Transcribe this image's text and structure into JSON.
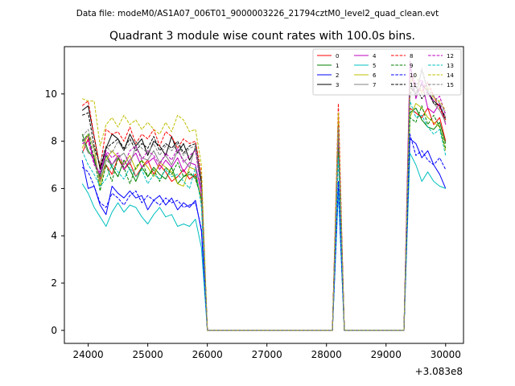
{
  "header": "Data file: modeM0/AS1A07_006T01_9000003226_21794cztM0_level2_quad_clean.evt",
  "chart_data": {
    "type": "line",
    "title": "Quadrant 3 module wise count rates with 100.0s bins.",
    "xlabel": "",
    "ylabel": "",
    "x_offset_label": "+3.083e8",
    "xlim": [
      23600,
      30300
    ],
    "ylim": [
      -0.55,
      12.0
    ],
    "xticks": [
      24000,
      25000,
      26000,
      27000,
      28000,
      29000,
      30000
    ],
    "xtick_labels": [
      "24000",
      "25000",
      "26000",
      "27000",
      "28000",
      "29000",
      "30000"
    ],
    "yticks": [
      0,
      2,
      4,
      6,
      8,
      10
    ],
    "ytick_labels": [
      "0",
      "2",
      "4",
      "6",
      "8",
      "10"
    ],
    "grid": false,
    "legend_position": "top-right",
    "x": [
      23900,
      24000,
      24100,
      24200,
      24300,
      24400,
      24500,
      24600,
      24700,
      24800,
      24900,
      25000,
      25100,
      25200,
      25300,
      25400,
      25500,
      25600,
      25700,
      25800,
      25900,
      26000,
      26100,
      26200,
      26300,
      26400,
      26500,
      26600,
      26700,
      26800,
      26900,
      27000,
      27100,
      27200,
      27300,
      27400,
      27500,
      27600,
      27700,
      27800,
      27900,
      28000,
      28100,
      28200,
      28300,
      28400,
      28500,
      28600,
      28700,
      28800,
      28900,
      29000,
      29100,
      29200,
      29300,
      29400,
      29500,
      29600,
      29700,
      29800,
      29900,
      30000
    ],
    "series": [
      {
        "name": "0",
        "color": "#ff0000",
        "dash": "solid",
        "values": [
          7.5,
          8.1,
          7.2,
          6.4,
          7.0,
          6.6,
          7.3,
          6.8,
          7.1,
          6.5,
          6.9,
          7.2,
          6.6,
          7.0,
          6.7,
          6.3,
          6.5,
          6.8,
          6.4,
          6.6,
          5.6,
          0,
          0,
          0,
          0,
          0,
          0,
          0,
          0,
          0,
          0,
          0,
          0,
          0,
          0,
          0,
          0,
          0,
          0,
          0,
          0,
          0,
          0,
          8.9,
          0,
          0,
          0,
          0,
          0,
          0,
          0,
          0,
          0,
          0,
          0,
          9.4,
          9.2,
          9.0,
          9.4,
          8.7,
          9.0,
          8.0
        ]
      },
      {
        "name": "1",
        "color": "#008000",
        "dash": "solid",
        "values": [
          8.3,
          7.6,
          7.2,
          6.5,
          7.4,
          6.9,
          6.5,
          7.2,
          6.8,
          6.3,
          6.9,
          6.5,
          6.9,
          6.6,
          6.4,
          6.9,
          6.2,
          6.5,
          6.6,
          6.5,
          5.5,
          0,
          0,
          0,
          0,
          0,
          0,
          0,
          0,
          0,
          0,
          0,
          0,
          0,
          0,
          0,
          0,
          0,
          0,
          0,
          0,
          0,
          0,
          8.1,
          0,
          0,
          0,
          0,
          0,
          0,
          0,
          0,
          0,
          0,
          0,
          9.2,
          9.4,
          8.9,
          8.6,
          8.5,
          8.8,
          7.9
        ]
      },
      {
        "name": "2",
        "color": "#0000ff",
        "dash": "solid",
        "values": [
          7.2,
          6.0,
          6.1,
          5.3,
          4.9,
          6.1,
          5.8,
          5.6,
          5.9,
          5.6,
          5.7,
          5.1,
          5.5,
          5.7,
          5.3,
          5.6,
          5.1,
          5.4,
          5.2,
          5.5,
          4.2,
          0,
          0,
          0,
          0,
          0,
          0,
          0,
          0,
          0,
          0,
          0,
          0,
          0,
          0,
          0,
          0,
          0,
          0,
          0,
          0,
          0,
          0,
          6.0,
          0,
          0,
          0,
          0,
          0,
          0,
          0,
          0,
          0,
          0,
          0,
          8.1,
          7.9,
          7.3,
          7.6,
          7.0,
          6.6,
          6.0
        ]
      },
      {
        "name": "3",
        "color": "#000000",
        "dash": "solid",
        "values": [
          9.3,
          9.5,
          8.2,
          6.8,
          7.7,
          8.3,
          8.1,
          7.6,
          8.3,
          7.8,
          8.1,
          7.4,
          8.0,
          7.8,
          7.4,
          8.2,
          7.5,
          7.9,
          7.2,
          7.7,
          6.3,
          0,
          0,
          0,
          0,
          0,
          0,
          0,
          0,
          0,
          0,
          0,
          0,
          0,
          0,
          0,
          0,
          0,
          0,
          0,
          0,
          0,
          0,
          8.6,
          0,
          0,
          0,
          0,
          0,
          0,
          0,
          0,
          0,
          0,
          0,
          10.3,
          10.0,
          10.4,
          10.1,
          9.7,
          9.5,
          8.9
        ]
      },
      {
        "name": "4",
        "color": "#bf00bf",
        "dash": "solid",
        "values": [
          8.0,
          8.2,
          7.1,
          6.6,
          7.5,
          7.0,
          7.4,
          6.8,
          7.2,
          7.5,
          6.9,
          7.1,
          7.3,
          6.8,
          7.2,
          6.9,
          7.3,
          6.7,
          7.1,
          7.0,
          5.8,
          0,
          0,
          0,
          0,
          0,
          0,
          0,
          0,
          0,
          0,
          0,
          0,
          0,
          0,
          0,
          0,
          0,
          0,
          0,
          0,
          0,
          0,
          8.3,
          0,
          0,
          0,
          0,
          0,
          0,
          0,
          0,
          0,
          0,
          0,
          11.4,
          9.8,
          10.5,
          9.4,
          9.2,
          9.6,
          8.7
        ]
      },
      {
        "name": "5",
        "color": "#00bfbf",
        "dash": "solid",
        "values": [
          6.2,
          5.8,
          5.2,
          4.8,
          4.4,
          5.0,
          5.4,
          5.0,
          5.3,
          5.2,
          4.8,
          4.5,
          4.9,
          5.2,
          4.8,
          4.9,
          4.4,
          4.5,
          4.4,
          4.7,
          3.5,
          0,
          0,
          0,
          0,
          0,
          0,
          0,
          0,
          0,
          0,
          0,
          0,
          0,
          0,
          0,
          0,
          0,
          0,
          0,
          0,
          0,
          0,
          5.9,
          0,
          0,
          0,
          0,
          0,
          0,
          0,
          0,
          0,
          0,
          0,
          7.5,
          7.0,
          6.3,
          6.7,
          6.3,
          6.1,
          6.0
        ]
      },
      {
        "name": "6",
        "color": "#bfbf00",
        "dash": "solid",
        "values": [
          7.7,
          8.3,
          7.7,
          6.1,
          7.2,
          7.6,
          7.3,
          7.0,
          7.4,
          6.8,
          7.2,
          6.9,
          6.5,
          7.1,
          6.9,
          6.7,
          6.2,
          6.1,
          6.9,
          6.8,
          5.4,
          0,
          0,
          0,
          0,
          0,
          0,
          0,
          0,
          0,
          0,
          0,
          0,
          0,
          0,
          0,
          0,
          0,
          0,
          0,
          0,
          0,
          0,
          8.0,
          0,
          0,
          0,
          0,
          0,
          0,
          0,
          0,
          0,
          0,
          0,
          9.0,
          9.6,
          9.4,
          9.0,
          8.8,
          8.6,
          7.6
        ]
      },
      {
        "name": "7",
        "color": "#808080",
        "dash": "solid",
        "values": [
          8.1,
          7.5,
          7.4,
          6.3,
          7.2,
          7.0,
          7.3,
          7.5,
          7.0,
          7.8,
          7.3,
          7.2,
          7.6,
          7.1,
          7.4,
          7.0,
          7.6,
          7.2,
          6.9,
          7.8,
          5.9,
          0,
          0,
          0,
          0,
          0,
          0,
          0,
          0,
          0,
          0,
          0,
          0,
          0,
          0,
          0,
          0,
          0,
          0,
          0,
          0,
          0,
          0,
          8.4,
          0,
          0,
          0,
          0,
          0,
          0,
          0,
          0,
          0,
          0,
          0,
          10.5,
          9.9,
          11.0,
          10.1,
          9.6,
          9.3,
          8.8
        ]
      },
      {
        "name": "8",
        "color": "#ff0000",
        "dash": "dashed",
        "values": [
          9.5,
          9.7,
          8.2,
          6.9,
          8.5,
          8.3,
          8.4,
          8.0,
          8.6,
          7.9,
          8.3,
          8.1,
          8.5,
          7.8,
          8.4,
          8.2,
          7.7,
          8.1,
          7.9,
          8.0,
          6.6,
          0,
          0,
          0,
          0,
          0,
          0,
          0,
          0,
          0,
          0,
          0,
          0,
          0,
          0,
          0,
          0,
          0,
          0,
          0,
          0,
          0,
          0,
          9.6,
          0,
          0,
          0,
          0,
          0,
          0,
          0,
          0,
          0,
          0,
          0,
          10.8,
          10.3,
          10.1,
          10.5,
          9.9,
          9.4,
          8.9
        ]
      },
      {
        "name": "9",
        "color": "#008000",
        "dash": "dashed",
        "values": [
          8.0,
          8.3,
          7.3,
          5.9,
          7.0,
          6.3,
          7.3,
          6.9,
          6.2,
          6.9,
          7.2,
          6.5,
          6.8,
          6.3,
          6.9,
          6.6,
          7.1,
          6.5,
          6.7,
          6.4,
          5.6,
          0,
          0,
          0,
          0,
          0,
          0,
          0,
          0,
          0,
          0,
          0,
          0,
          0,
          0,
          0,
          0,
          0,
          0,
          0,
          0,
          0,
          0,
          7.7,
          0,
          0,
          0,
          0,
          0,
          0,
          0,
          0,
          0,
          0,
          0,
          9.0,
          8.8,
          9.5,
          8.7,
          9.1,
          8.6,
          7.7
        ]
      },
      {
        "name": "10",
        "color": "#0000ff",
        "dash": "dashed",
        "values": [
          6.9,
          6.7,
          6.1,
          5.4,
          5.2,
          5.8,
          5.6,
          5.3,
          5.7,
          5.9,
          5.4,
          5.7,
          5.5,
          5.3,
          5.6,
          5.4,
          5.5,
          5.2,
          5.3,
          5.4,
          4.3,
          0,
          0,
          0,
          0,
          0,
          0,
          0,
          0,
          0,
          0,
          0,
          0,
          0,
          0,
          0,
          0,
          0,
          0,
          0,
          0,
          0,
          0,
          6.3,
          0,
          0,
          0,
          0,
          0,
          0,
          0,
          0,
          0,
          0,
          0,
          8.3,
          7.4,
          7.6,
          7.2,
          7.0,
          7.3,
          6.8
        ]
      },
      {
        "name": "11",
        "color": "#000000",
        "dash": "dashed",
        "values": [
          9.1,
          9.2,
          7.8,
          6.9,
          7.7,
          7.9,
          8.1,
          7.7,
          8.1,
          7.6,
          7.9,
          7.7,
          8.2,
          7.6,
          7.9,
          7.7,
          8.0,
          7.5,
          7.8,
          7.9,
          6.3,
          0,
          0,
          0,
          0,
          0,
          0,
          0,
          0,
          0,
          0,
          0,
          0,
          0,
          0,
          0,
          0,
          0,
          0,
          0,
          0,
          0,
          0,
          8.7,
          0,
          0,
          0,
          0,
          0,
          0,
          0,
          0,
          0,
          0,
          0,
          10.0,
          10.3,
          9.8,
          10.1,
          9.6,
          9.5,
          9.0
        ]
      },
      {
        "name": "12",
        "color": "#bf00bf",
        "dash": "dashed",
        "values": [
          7.9,
          8.0,
          7.0,
          6.7,
          7.6,
          7.3,
          7.5,
          7.0,
          7.6,
          7.8,
          7.2,
          7.6,
          7.4,
          7.0,
          7.5,
          7.2,
          7.7,
          7.1,
          7.4,
          7.6,
          5.9,
          0,
          0,
          0,
          0,
          0,
          0,
          0,
          0,
          0,
          0,
          0,
          0,
          0,
          0,
          0,
          0,
          0,
          0,
          0,
          0,
          0,
          0,
          8.4,
          0,
          0,
          0,
          0,
          0,
          0,
          0,
          0,
          0,
          0,
          0,
          11.1,
          10.4,
          10.6,
          10.0,
          9.7,
          9.9,
          9.1
        ]
      },
      {
        "name": "13",
        "color": "#00bfbf",
        "dash": "dashed",
        "values": [
          7.6,
          7.0,
          6.6,
          6.1,
          6.4,
          7.0,
          6.7,
          6.4,
          6.9,
          6.5,
          6.8,
          6.2,
          6.6,
          6.4,
          6.8,
          6.5,
          6.6,
          6.3,
          6.0,
          6.9,
          5.2,
          0,
          0,
          0,
          0,
          0,
          0,
          0,
          0,
          0,
          0,
          0,
          0,
          0,
          0,
          0,
          0,
          0,
          0,
          0,
          0,
          0,
          0,
          7.3,
          0,
          0,
          0,
          0,
          0,
          0,
          0,
          0,
          0,
          0,
          0,
          9.7,
          9.0,
          9.1,
          8.6,
          8.3,
          8.5,
          7.4
        ]
      },
      {
        "name": "14",
        "color": "#bfbf00",
        "dash": "dashed",
        "values": [
          9.8,
          9.7,
          9.7,
          7.8,
          8.7,
          9.0,
          8.6,
          9.1,
          8.7,
          8.9,
          8.5,
          8.8,
          8.5,
          8.3,
          8.8,
          8.4,
          9.1,
          8.9,
          8.4,
          8.5,
          7.0,
          0,
          0,
          0,
          0,
          0,
          0,
          0,
          0,
          0,
          0,
          0,
          0,
          0,
          0,
          0,
          0,
          0,
          0,
          0,
          0,
          0,
          0,
          9.2,
          0,
          0,
          0,
          0,
          0,
          0,
          0,
          0,
          0,
          0,
          0,
          10.4,
          10.9,
          10.0,
          10.3,
          9.8,
          9.7,
          9.3
        ]
      },
      {
        "name": "15",
        "color": "#808080",
        "dash": "dashed",
        "values": [
          8.2,
          8.5,
          7.6,
          7.1,
          7.8,
          7.5,
          8.0,
          7.6,
          7.9,
          8.0,
          7.7,
          7.5,
          7.9,
          7.4,
          7.8,
          7.6,
          7.9,
          7.4,
          7.7,
          7.8,
          6.1,
          0,
          0,
          0,
          0,
          0,
          0,
          0,
          0,
          0,
          0,
          0,
          0,
          0,
          0,
          0,
          0,
          0,
          0,
          0,
          0,
          0,
          0,
          8.6,
          0,
          0,
          0,
          0,
          0,
          0,
          0,
          0,
          0,
          0,
          0,
          10.6,
          10.0,
          11.1,
          10.2,
          9.9,
          9.6,
          9.2
        ]
      }
    ]
  }
}
